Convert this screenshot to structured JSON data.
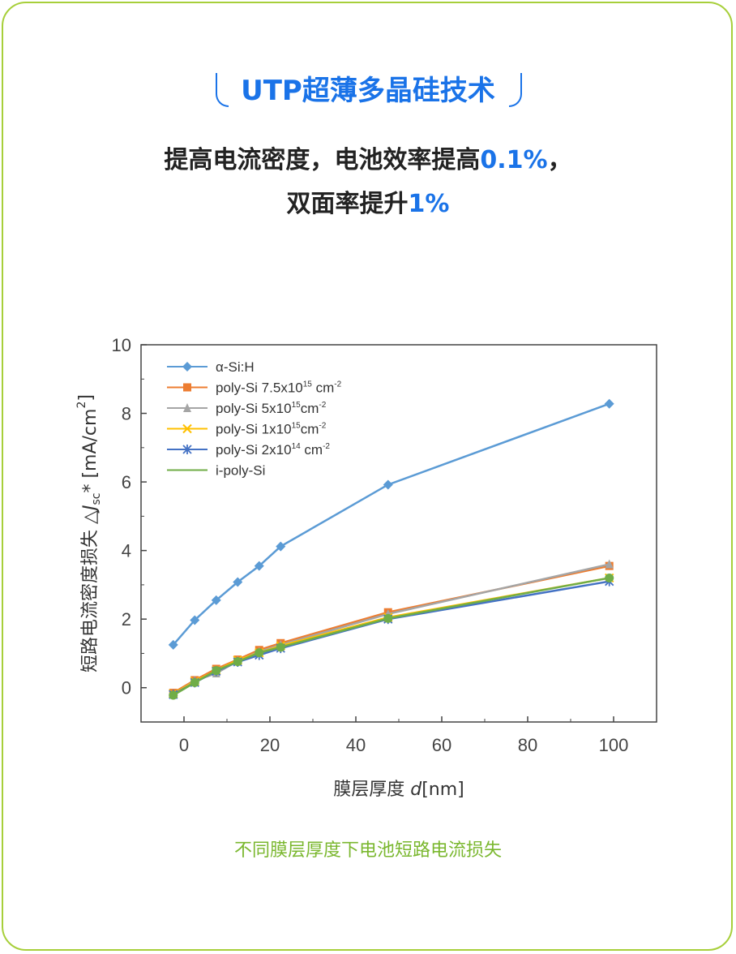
{
  "header": {
    "title": "UTP超薄多晶硅技术",
    "line1_text": "提高电流密度，电池效率提高",
    "line1_highlight": "0.1%",
    "line1_tail": "，",
    "line2_text": "双面率提升",
    "line2_highlight": "1%"
  },
  "caption": "不同膜层厚度下电池短路电流损失",
  "colors": {
    "border": "#a7cf3a",
    "accent": "#1a73e8",
    "caption": "#7ab72e"
  },
  "chart_data": {
    "type": "line",
    "xlabel_prefix": "膜层厚度 ",
    "xlabel_var": "d",
    "xlabel_unit": "[nm]",
    "ylabel_prefix": "短路电流密度损失 △",
    "ylabel_var": "J",
    "ylabel_sub": "sc",
    "ylabel_unit": "* [mA/cm",
    "ylabel_sup": "2",
    "ylabel_close": "]",
    "xlim": [
      -10,
      110
    ],
    "ylim": [
      -1,
      10
    ],
    "xticks": [
      0,
      20,
      40,
      60,
      80,
      100
    ],
    "yticks": [
      0,
      2,
      4,
      6,
      8,
      10
    ],
    "grid": false,
    "legend_position": "top-left",
    "series": [
      {
        "name": "α-Si:H",
        "color": "#5b9bd5",
        "marker": "diamond",
        "x": [
          -2.5,
          2.5,
          7.5,
          12.5,
          17.5,
          22.5,
          47.5,
          99
        ],
        "y": [
          1.25,
          1.97,
          2.55,
          3.08,
          3.55,
          4.12,
          5.92,
          8.28
        ]
      },
      {
        "name": "poly-Si 7.5x10",
        "sup": "15",
        "unit": " cm",
        "unitsup": "-2",
        "color": "#ed7d31",
        "marker": "square",
        "x": [
          -2.5,
          2.5,
          7.5,
          12.5,
          17.5,
          22.5,
          47.5,
          99
        ],
        "y": [
          -0.15,
          0.22,
          0.55,
          0.82,
          1.1,
          1.3,
          2.2,
          3.55
        ]
      },
      {
        "name": "poly-Si 5x10",
        "sup": "15",
        "unit": "cm",
        "unitsup": "-2",
        "color": "#a5a5a5",
        "marker": "triangle",
        "x": [
          -2.5,
          2.5,
          7.5,
          12.5,
          17.5,
          22.5,
          47.5,
          99
        ],
        "y": [
          -0.2,
          0.2,
          0.42,
          0.78,
          1.05,
          1.25,
          2.15,
          3.6
        ]
      },
      {
        "name": "poly-Si 1x10",
        "sup": "15",
        "unit": "cm",
        "unitsup": "-2",
        "color": "#ffc000",
        "marker": "x",
        "x": [
          -2.5,
          2.5,
          7.5,
          12.5,
          17.5,
          22.5,
          47.5,
          99
        ],
        "y": [
          -0.18,
          0.18,
          0.5,
          0.8,
          1.02,
          1.22,
          2.05,
          3.2
        ]
      },
      {
        "name": "poly-Si 2x10",
        "sup": "14",
        "unit": " cm",
        "unitsup": "-2",
        "color": "#4472c4",
        "marker": "star",
        "x": [
          -2.5,
          2.5,
          7.5,
          12.5,
          17.5,
          22.5,
          47.5,
          99
        ],
        "y": [
          -0.2,
          0.15,
          0.48,
          0.75,
          0.95,
          1.15,
          2.0,
          3.1
        ]
      },
      {
        "name": "i-poly-Si",
        "color": "#70ad47",
        "marker": "circle",
        "x": [
          -2.5,
          2.5,
          7.5,
          12.5,
          17.5,
          22.5,
          47.5,
          99
        ],
        "y": [
          -0.22,
          0.15,
          0.5,
          0.76,
          1.02,
          1.18,
          2.02,
          3.2
        ]
      }
    ]
  }
}
